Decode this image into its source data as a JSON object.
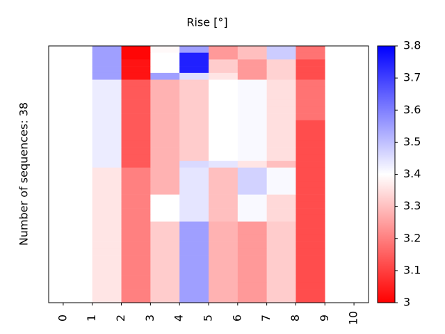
{
  "chart_data": {
    "type": "heatmap",
    "title": "Rise [°]",
    "y_label": "Number of sequences: 38",
    "x": [
      1,
      2,
      3,
      4,
      5,
      6,
      7,
      8
    ],
    "xlim": [
      -0.5,
      10.5
    ],
    "xticks": [
      0,
      1,
      2,
      3,
      4,
      5,
      6,
      7,
      8,
      9,
      10
    ],
    "z": [
      [
        3.55,
        3.01,
        3.39,
        3.55,
        3.24,
        3.3,
        3.48,
        3.18
      ],
      [
        3.55,
        3.01,
        3.4,
        3.75,
        3.24,
        3.3,
        3.48,
        3.18
      ],
      [
        3.55,
        3.03,
        3.4,
        3.75,
        3.32,
        3.24,
        3.33,
        3.12
      ],
      [
        3.55,
        3.03,
        3.4,
        3.75,
        3.32,
        3.24,
        3.33,
        3.12
      ],
      [
        3.55,
        3.03,
        3.55,
        3.45,
        3.36,
        3.24,
        3.33,
        3.12
      ],
      [
        3.43,
        3.14,
        3.28,
        3.32,
        3.4,
        3.41,
        3.35,
        3.18
      ],
      [
        3.43,
        3.14,
        3.28,
        3.32,
        3.4,
        3.41,
        3.35,
        3.18
      ],
      [
        3.43,
        3.14,
        3.28,
        3.32,
        3.4,
        3.41,
        3.35,
        3.18
      ],
      [
        3.43,
        3.14,
        3.28,
        3.32,
        3.4,
        3.41,
        3.35,
        3.18
      ],
      [
        3.43,
        3.14,
        3.28,
        3.32,
        3.4,
        3.41,
        3.35,
        3.18
      ],
      [
        3.43,
        3.14,
        3.28,
        3.32,
        3.4,
        3.41,
        3.35,
        3.18
      ],
      [
        3.43,
        3.14,
        3.28,
        3.32,
        3.4,
        3.41,
        3.35,
        3.12
      ],
      [
        3.43,
        3.14,
        3.28,
        3.32,
        3.4,
        3.41,
        3.35,
        3.12
      ],
      [
        3.43,
        3.14,
        3.28,
        3.32,
        3.4,
        3.41,
        3.35,
        3.12
      ],
      [
        3.43,
        3.14,
        3.28,
        3.32,
        3.4,
        3.41,
        3.35,
        3.12
      ],
      [
        3.43,
        3.14,
        3.28,
        3.32,
        3.4,
        3.41,
        3.35,
        3.12
      ],
      [
        3.43,
        3.14,
        3.28,
        3.32,
        3.4,
        3.41,
        3.35,
        3.12
      ],
      [
        3.43,
        3.14,
        3.28,
        3.46,
        3.44,
        3.36,
        3.3,
        3.12
      ],
      [
        3.36,
        3.2,
        3.28,
        3.44,
        3.3,
        3.47,
        3.41,
        3.12
      ],
      [
        3.36,
        3.2,
        3.28,
        3.44,
        3.3,
        3.47,
        3.41,
        3.12
      ],
      [
        3.36,
        3.2,
        3.28,
        3.44,
        3.3,
        3.47,
        3.41,
        3.12
      ],
      [
        3.36,
        3.2,
        3.28,
        3.44,
        3.3,
        3.47,
        3.41,
        3.12
      ],
      [
        3.36,
        3.2,
        3.4,
        3.44,
        3.3,
        3.41,
        3.34,
        3.12
      ],
      [
        3.36,
        3.2,
        3.4,
        3.44,
        3.3,
        3.41,
        3.34,
        3.12
      ],
      [
        3.36,
        3.2,
        3.4,
        3.44,
        3.3,
        3.41,
        3.34,
        3.12
      ],
      [
        3.36,
        3.2,
        3.4,
        3.44,
        3.3,
        3.41,
        3.34,
        3.12
      ],
      [
        3.36,
        3.2,
        3.32,
        3.55,
        3.28,
        3.24,
        3.32,
        3.12
      ],
      [
        3.36,
        3.2,
        3.32,
        3.55,
        3.28,
        3.24,
        3.32,
        3.12
      ],
      [
        3.36,
        3.2,
        3.32,
        3.55,
        3.28,
        3.24,
        3.32,
        3.12
      ],
      [
        3.36,
        3.2,
        3.32,
        3.55,
        3.28,
        3.24,
        3.32,
        3.12
      ],
      [
        3.36,
        3.2,
        3.32,
        3.55,
        3.28,
        3.24,
        3.32,
        3.12
      ],
      [
        3.36,
        3.2,
        3.32,
        3.55,
        3.28,
        3.24,
        3.32,
        3.12
      ],
      [
        3.36,
        3.2,
        3.32,
        3.55,
        3.28,
        3.24,
        3.32,
        3.12
      ],
      [
        3.36,
        3.2,
        3.32,
        3.55,
        3.28,
        3.24,
        3.32,
        3.12
      ],
      [
        3.36,
        3.2,
        3.32,
        3.55,
        3.28,
        3.24,
        3.32,
        3.12
      ],
      [
        3.36,
        3.2,
        3.32,
        3.55,
        3.28,
        3.24,
        3.32,
        3.12
      ],
      [
        3.36,
        3.2,
        3.32,
        3.55,
        3.28,
        3.24,
        3.32,
        3.12
      ],
      [
        3.36,
        3.2,
        3.32,
        3.55,
        3.28,
        3.24,
        3.32,
        3.12
      ]
    ],
    "cmap": [
      "#ff0000",
      "#ffffff",
      "#0000ff"
    ],
    "clim": [
      3,
      3.8
    ],
    "cticks": [
      3,
      3.1,
      3.2,
      3.3,
      3.4,
      3.5,
      3.6,
      3.7,
      3.8
    ]
  }
}
